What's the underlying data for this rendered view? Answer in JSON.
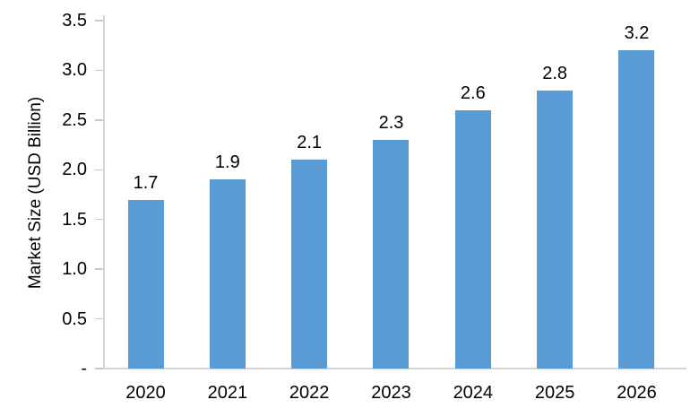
{
  "chart_data": {
    "type": "bar",
    "title": "",
    "categories": [
      "2020",
      "2021",
      "2022",
      "2023",
      "2024",
      "2025",
      "2026"
    ],
    "values": [
      1.7,
      1.9,
      2.1,
      2.3,
      2.6,
      2.8,
      3.2
    ],
    "data_labels": [
      "1.7",
      "1.9",
      "2.1",
      "2.3",
      "2.6",
      "2.8",
      "3.2"
    ],
    "xlabel": "",
    "ylabel": "Market Size (USD Billion)",
    "ylim": [
      0,
      3.5
    ],
    "ytick_step": 0.5,
    "ytick_labels_top_to_bottom": [
      "3.5",
      "3.0",
      "2.5",
      "2.0",
      "1.5",
      "1.0",
      "0.5",
      "-"
    ],
    "grid": false,
    "legend": "none",
    "colors": {
      "bar_fill": "#5B9BD5",
      "axis_line": "#D6D6D6",
      "tick_mark": "#C9C9C9",
      "text": "#000000"
    }
  }
}
